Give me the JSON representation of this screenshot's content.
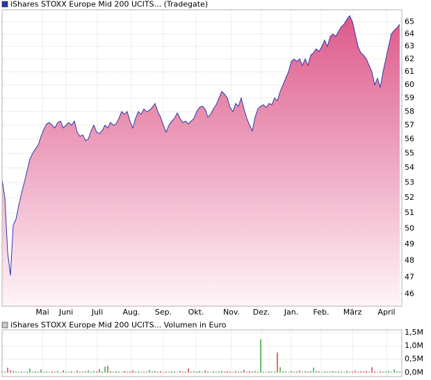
{
  "chart_data": [
    {
      "type": "area",
      "title": "iShares STOXX Europe Mid 200 UCITS... (Tradegate)",
      "log_scale": true,
      "grid": true,
      "line_color": "#2a3aa8",
      "fill_color": "#dd5a8a",
      "xlim": [
        0,
        143.75
      ],
      "ylim": [
        45.3,
        66
      ],
      "xticks": [
        {
          "value": 14.5,
          "label": "Mai"
        },
        {
          "value": 23,
          "label": "Juni"
        },
        {
          "value": 34.25,
          "label": "Juli"
        },
        {
          "value": 46.5,
          "label": "Aug."
        },
        {
          "value": 58,
          "label": "Sep."
        },
        {
          "value": 69.75,
          "label": "Okt."
        },
        {
          "value": 82.5,
          "label": "Nov."
        },
        {
          "value": 93.25,
          "label": "Dez."
        },
        {
          "value": 104,
          "label": "Jan."
        },
        {
          "value": 114.75,
          "label": "Feb."
        },
        {
          "value": 126,
          "label": "März"
        },
        {
          "value": 138.25,
          "label": "April"
        }
      ],
      "yticks": [
        46,
        47,
        48,
        49,
        50,
        51,
        52,
        53,
        54,
        55,
        56,
        57,
        58,
        59,
        60,
        61,
        62,
        63,
        64,
        65
      ],
      "values": [
        53.2,
        52,
        48.5,
        47.1,
        50.2,
        50.6,
        51.5,
        52.3,
        53,
        53.8,
        54.6,
        55,
        55.3,
        55.6,
        56.2,
        56.7,
        57.1,
        57.2,
        57,
        56.8,
        57.2,
        57.3,
        56.8,
        57,
        57.2,
        57,
        57.3,
        56.5,
        56.2,
        56.3,
        55.9,
        56,
        56.6,
        57,
        56.5,
        56.4,
        56.6,
        57,
        56.8,
        57.2,
        57,
        57.1,
        57.5,
        58,
        57.8,
        58,
        57.3,
        56.8,
        57.5,
        58,
        57.8,
        58.2,
        58,
        58.1,
        58.3,
        58.6,
        58,
        57.6,
        57,
        56.5,
        57,
        57.3,
        57.5,
        57.9,
        57.5,
        57.2,
        57.3,
        57.1,
        57.3,
        57.5,
        58,
        58.3,
        58.4,
        58.2,
        57.6,
        57.8,
        58.2,
        58.5,
        59,
        59.5,
        59.3,
        59,
        58.3,
        58,
        58.6,
        58.4,
        59,
        58.2,
        57.5,
        57,
        56.6,
        57.6,
        58.2,
        58.4,
        58.5,
        58.3,
        58.6,
        58.5,
        59,
        58.8,
        59.5,
        60,
        60.5,
        61,
        61.8,
        62,
        61.8,
        62,
        61.5,
        62,
        61.5,
        62.3,
        62.5,
        62.8,
        62.6,
        63,
        63.5,
        63,
        63.8,
        64,
        63.8,
        64.2,
        64.6,
        64.8,
        65.2,
        65.5,
        65,
        64,
        63,
        62.5,
        62.3,
        62,
        61.5,
        61,
        60,
        60.5,
        59.8,
        61,
        62,
        63,
        64,
        64.3,
        64.5,
        64.8
      ]
    },
    {
      "type": "volume",
      "title": "iShares STOXX Europe Mid 200 UCITS... Volumen in Euro",
      "grid": true,
      "up_color": "#3aa83a",
      "down_color": "#d83a3a",
      "xlim": [
        0,
        143.75
      ],
      "ylim": [
        -0.15,
        1.6
      ],
      "yticks": [
        {
          "value": 0,
          "label": "0,0M"
        },
        {
          "value": 0.5,
          "label": "0,5M"
        },
        {
          "value": 1,
          "label": "1,0M"
        },
        {
          "value": 1.5,
          "label": "1,5M"
        }
      ],
      "values": [
        0.05,
        0.03,
        0.18,
        0.08,
        0.06,
        0.04,
        0.03,
        0.05,
        0.02,
        0.04,
        0.15,
        0.03,
        0.05,
        0.04,
        0.12,
        0.03,
        0.05,
        0.02,
        0.04,
        0.03,
        0.06,
        0.02,
        0.08,
        0.04,
        0.03,
        0.05,
        0.02,
        0.07,
        0.03,
        0.04,
        0.05,
        0.09,
        0.03,
        0.06,
        0.04,
        0.12,
        0.04,
        0.22,
        0.25,
        0.06,
        0.03,
        0.05,
        0.04,
        0.02,
        0.06,
        0.03,
        0.04,
        0.08,
        0.03,
        0.05,
        0.02,
        0.04,
        0.03,
        0.1,
        0.04,
        0.06,
        0.03,
        0.05,
        0.02,
        0.04,
        0.03,
        0.05,
        0.04,
        0.02,
        0.06,
        0.03,
        0.04,
        0.15,
        0.03,
        0.05,
        0.04,
        0.06,
        0.03,
        0.08,
        0.04,
        0.02,
        0.05,
        0.03,
        0.04,
        0.06,
        0.03,
        0.05,
        0.04,
        0.02,
        0.06,
        0.03,
        0.04,
        0.1,
        0.03,
        0.05,
        0.04,
        0.06,
        0.03,
        1.25,
        0.04,
        0.02,
        0.05,
        0.03,
        0.04,
        0.75,
        0.2,
        0.05,
        0.04,
        0.02,
        0.06,
        0.03,
        0.04,
        0.08,
        0.03,
        0.05,
        0.04,
        0.06,
        0.18,
        0.05,
        0.04,
        0.02,
        0.05,
        0.03,
        0.04,
        0.06,
        0.03,
        0.05,
        0.04,
        0.02,
        0.06,
        0.03,
        0.04,
        0.07,
        0.03,
        0.05,
        0.04,
        0.06,
        0.03,
        0.2,
        0.04,
        0.02,
        0.05,
        0.03,
        0.04,
        0.06,
        0.03,
        0.12,
        0.05,
        0.04
      ]
    }
  ]
}
